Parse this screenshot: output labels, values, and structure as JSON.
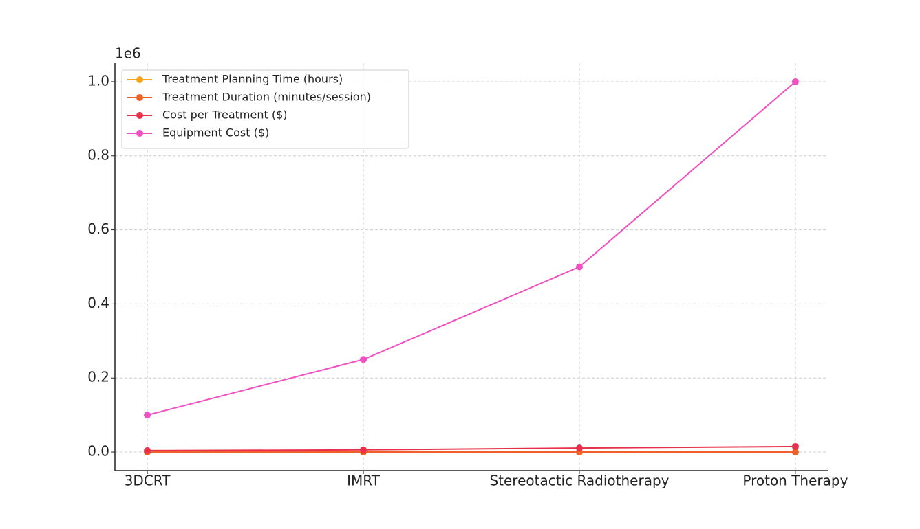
{
  "chart_data": {
    "type": "line",
    "categories": [
      "3DCRT",
      "IMRT",
      "Stereotactic Radiotherapy",
      "Proton Therapy"
    ],
    "series": [
      {
        "name": "Treatment Planning Time (hours)",
        "color": "#f8a51d",
        "values": [
          2,
          4,
          6,
          8
        ]
      },
      {
        "name": "Treatment Duration (minutes/session)",
        "color": "#f0602a",
        "values": [
          15,
          20,
          30,
          25
        ]
      },
      {
        "name": "Cost per Treatment ($)",
        "color": "#e8304a",
        "values": [
          4000,
          6000,
          11000,
          15000
        ]
      },
      {
        "name": "Equipment Cost ($)",
        "color": "#f050c0",
        "values": [
          100000,
          250000,
          500000,
          1000000
        ]
      }
    ],
    "y_offset_label": "1e6",
    "ylim": [
      -50000,
      1050000
    ],
    "yticks": [
      {
        "value": 0,
        "label": "0.0"
      },
      {
        "value": 200000,
        "label": "0.2"
      },
      {
        "value": 400000,
        "label": "0.4"
      },
      {
        "value": 600000,
        "label": "0.6"
      },
      {
        "value": 800000,
        "label": "0.8"
      },
      {
        "value": 1000000,
        "label": "1.0"
      }
    ],
    "grid": true,
    "legend": "upper left"
  }
}
